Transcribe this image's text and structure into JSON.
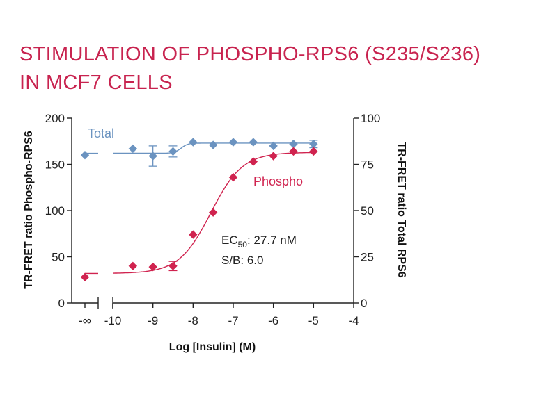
{
  "title_lines": [
    "STIMULATION OF PHOSPHO-RPS6 (S235/S236)",
    "IN MCF7 CELLS"
  ],
  "chart_data": {
    "type": "scatter",
    "xlabel": "Log [Insulin] (M)",
    "ylabel_left": "TR-FRET ratio Phospho-RPS6",
    "ylabel_right": "TR-FRET ratio Total RPS6",
    "x_ticks": [
      "-∞",
      "-10",
      "-9",
      "-8",
      "-7",
      "-6",
      "-5",
      "-4"
    ],
    "y_left_ticks": [
      0,
      50,
      100,
      150,
      200
    ],
    "y_right_ticks": [
      0,
      25,
      50,
      75,
      100
    ],
    "xlim": [
      -10,
      -4
    ],
    "ylim_left": [
      0,
      200
    ],
    "ylim_right": [
      0,
      100
    ],
    "grid": false,
    "series": [
      {
        "name": "Total",
        "axis": "right",
        "color": "#6b93c0",
        "marker": "diamond",
        "points": [
          {
            "x": "-∞",
            "y": 80
          },
          {
            "x": -9.5,
            "y": 83.5
          },
          {
            "x": -9.0,
            "y": 79.5,
            "err": 5.5
          },
          {
            "x": -8.5,
            "y": 82,
            "err": 3
          },
          {
            "x": -8.0,
            "y": 87
          },
          {
            "x": -7.5,
            "y": 85.5
          },
          {
            "x": -7.0,
            "y": 87
          },
          {
            "x": -6.5,
            "y": 87
          },
          {
            "x": -6.0,
            "y": 85
          },
          {
            "x": -5.5,
            "y": 86
          },
          {
            "x": -5.0,
            "y": 86,
            "err": 2
          }
        ],
        "fit_levels": {
          "low": 81,
          "high": 86.5
        }
      },
      {
        "name": "Phospho",
        "axis": "left",
        "color": "#d0234f",
        "marker": "diamond",
        "points": [
          {
            "x": "-∞",
            "y": 28
          },
          {
            "x": -9.5,
            "y": 40
          },
          {
            "x": -9.0,
            "y": 39
          },
          {
            "x": -8.5,
            "y": 40,
            "err": 5
          },
          {
            "x": -8.0,
            "y": 74
          },
          {
            "x": -7.5,
            "y": 98
          },
          {
            "x": -7.0,
            "y": 136
          },
          {
            "x": -6.5,
            "y": 153
          },
          {
            "x": -6.0,
            "y": 159
          },
          {
            "x": -5.5,
            "y": 164
          },
          {
            "x": -5.0,
            "y": 164
          }
        ],
        "fit": {
          "bottom": 32,
          "top": 163,
          "log_ec50": -7.56,
          "hill": 1.1
        }
      }
    ],
    "annotations": [
      {
        "label": "EC",
        "subscript": "50",
        "value": ": 27.7 nM"
      },
      {
        "text": "S/B: 6.0"
      }
    ]
  }
}
